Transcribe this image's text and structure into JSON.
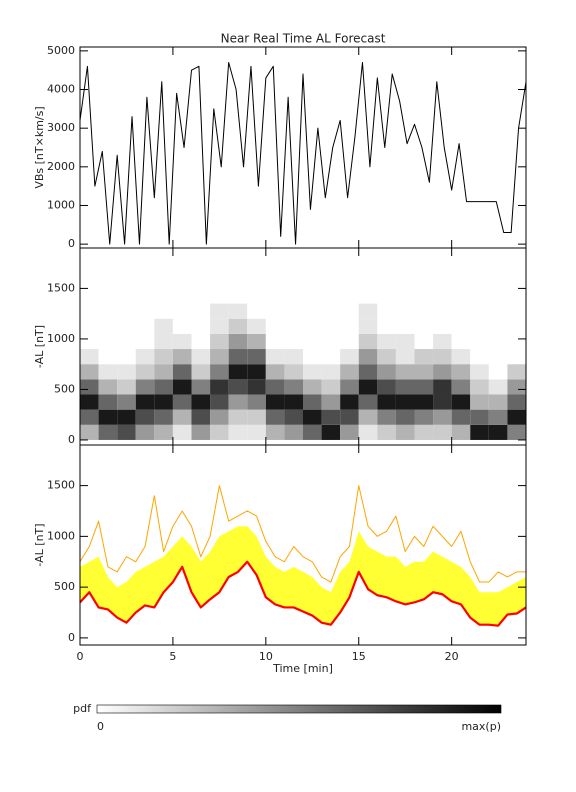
{
  "chart_data": [
    {
      "type": "line",
      "title": "Near Real Time AL Forecast",
      "ylabel": "VBs [nT×km/s]",
      "xlim": [
        0,
        24
      ],
      "xticks": [
        0,
        5,
        10,
        15,
        20
      ],
      "xtick_labels": false,
      "ylim": [
        -100,
        5100
      ],
      "yticks": [
        0,
        1000,
        2000,
        3000,
        4000,
        5000
      ],
      "x": [
        0,
        0.4,
        0.8,
        1.2,
        1.6,
        2,
        2.4,
        2.8,
        3.2,
        3.6,
        4,
        4.4,
        4.8,
        5.2,
        5.6,
        6,
        6.4,
        6.8,
        7.2,
        7.6,
        8,
        8.4,
        8.8,
        9.2,
        9.6,
        10,
        10.4,
        10.8,
        11.2,
        11.6,
        12,
        12.4,
        12.8,
        13.2,
        13.6,
        14,
        14.4,
        14.8,
        15.2,
        15.6,
        16,
        16.4,
        16.8,
        17.2,
        17.6,
        18,
        18.4,
        18.8,
        19.2,
        19.6,
        20,
        20.4,
        20.8,
        21.2,
        21.6,
        22,
        22.4,
        22.8,
        23.2,
        23.6,
        24
      ],
      "series": [
        {
          "color": "#000000",
          "values": [
            3200,
            4600,
            1500,
            2400,
            0,
            2300,
            0,
            3300,
            0,
            3800,
            1200,
            4200,
            0,
            3900,
            2500,
            4500,
            4600,
            0,
            3500,
            2000,
            4700,
            4000,
            2000,
            4600,
            1500,
            4300,
            4600,
            200,
            3800,
            0,
            4400,
            900,
            3000,
            1200,
            2500,
            3200,
            1200,
            2800,
            4700,
            2000,
            4300,
            2500,
            4400,
            3700,
            2600,
            3100,
            2500,
            1600,
            4200,
            2500,
            1400,
            2600,
            1100,
            1100,
            1100,
            1100,
            1100,
            300,
            300,
            3000,
            4200
          ]
        }
      ]
    },
    {
      "type": "heatmap",
      "ylabel": "-AL [nT]",
      "xlim": [
        0,
        24
      ],
      "xticks": [
        0,
        5,
        10,
        15,
        20
      ],
      "xtick_labels": false,
      "ylim": [
        -50,
        1900
      ],
      "yticks": [
        0,
        500,
        1000,
        1500
      ],
      "x_bins": [
        0,
        1,
        2,
        3,
        4,
        5,
        6,
        7,
        8,
        9,
        10,
        11,
        12,
        13,
        14,
        15,
        16,
        17,
        18,
        19,
        20,
        21,
        22,
        23,
        24
      ],
      "y_bins": [
        0,
        150,
        300,
        450,
        600,
        750,
        900,
        1050,
        1200,
        1350,
        1500
      ],
      "z": [
        [
          0.3,
          0.6,
          0.9,
          0.6,
          0.3,
          0.1,
          0,
          0,
          0,
          0
        ],
        [
          0.6,
          0.9,
          0.6,
          0.3,
          0.1,
          0,
          0,
          0,
          0,
          0
        ],
        [
          0.7,
          0.9,
          0.5,
          0.2,
          0.1,
          0,
          0,
          0,
          0,
          0
        ],
        [
          0.4,
          0.7,
          0.9,
          0.5,
          0.2,
          0.1,
          0,
          0,
          0,
          0
        ],
        [
          0.3,
          0.6,
          0.9,
          0.6,
          0.3,
          0.2,
          0.1,
          0.1,
          0,
          0
        ],
        [
          0.1,
          0.3,
          0.6,
          0.9,
          0.6,
          0.3,
          0.1,
          0,
          0,
          0
        ],
        [
          0.4,
          0.7,
          0.9,
          0.5,
          0.2,
          0.1,
          0,
          0,
          0,
          0
        ],
        [
          0.2,
          0.4,
          0.7,
          0.8,
          0.5,
          0.3,
          0.2,
          0.1,
          0.1,
          0
        ],
        [
          0.1,
          0.2,
          0.4,
          0.7,
          0.9,
          0.6,
          0.4,
          0.2,
          0.1,
          0
        ],
        [
          0.1,
          0.2,
          0.5,
          0.8,
          0.9,
          0.6,
          0.3,
          0.1,
          0,
          0
        ],
        [
          0.3,
          0.6,
          0.9,
          0.6,
          0.3,
          0.1,
          0,
          0,
          0,
          0
        ],
        [
          0.4,
          0.7,
          0.9,
          0.5,
          0.2,
          0.1,
          0,
          0,
          0,
          0
        ],
        [
          0.6,
          0.9,
          0.6,
          0.3,
          0.1,
          0,
          0,
          0,
          0,
          0
        ],
        [
          0.9,
          0.7,
          0.4,
          0.2,
          0.1,
          0,
          0,
          0,
          0,
          0
        ],
        [
          0.4,
          0.7,
          0.9,
          0.5,
          0.3,
          0.1,
          0,
          0,
          0,
          0
        ],
        [
          0.1,
          0.3,
          0.6,
          0.9,
          0.6,
          0.4,
          0.2,
          0.1,
          0.1,
          0
        ],
        [
          0.2,
          0.5,
          0.9,
          0.7,
          0.4,
          0.2,
          0.1,
          0,
          0,
          0
        ],
        [
          0.3,
          0.6,
          0.9,
          0.6,
          0.3,
          0.1,
          0.1,
          0,
          0,
          0
        ],
        [
          0.2,
          0.5,
          0.9,
          0.6,
          0.3,
          0.2,
          0,
          0,
          0,
          0
        ],
        [
          0.2,
          0.4,
          0.8,
          0.8,
          0.4,
          0.2,
          0.1,
          0,
          0,
          0
        ],
        [
          0.3,
          0.6,
          0.9,
          0.5,
          0.3,
          0.1,
          0,
          0,
          0,
          0
        ],
        [
          0.9,
          0.6,
          0.3,
          0.2,
          0.1,
          0,
          0,
          0,
          0,
          0
        ],
        [
          0.9,
          0.5,
          0.3,
          0.1,
          0,
          0,
          0,
          0,
          0,
          0
        ],
        [
          0.5,
          0.9,
          0.6,
          0.4,
          0.2,
          0,
          0,
          0,
          0,
          0
        ]
      ],
      "colorbar": {
        "label": "pdf",
        "lim": [
          0,
          1
        ],
        "ticks": [
          0,
          {
            "value": 1,
            "label": "max(p)"
          }
        ]
      }
    },
    {
      "type": "line",
      "ylabel": "-AL [nT]",
      "xlabel": "Time [min]",
      "xlim": [
        0,
        24
      ],
      "xticks": [
        0,
        5,
        10,
        15,
        20
      ],
      "ylim": [
        -70,
        1900
      ],
      "yticks": [
        0,
        500,
        1000,
        1500
      ],
      "x": [
        0,
        0.5,
        1,
        1.5,
        2,
        2.5,
        3,
        3.5,
        4,
        4.5,
        5,
        5.5,
        6,
        6.5,
        7,
        7.5,
        8,
        8.5,
        9,
        9.5,
        10,
        10.5,
        11,
        11.5,
        12,
        12.5,
        13,
        13.5,
        14,
        14.5,
        15,
        15.5,
        16,
        16.5,
        17,
        17.5,
        18,
        18.5,
        19,
        19.5,
        20,
        20.5,
        21,
        21.5,
        22,
        22.5,
        23,
        23.5,
        24
      ],
      "series": [
        {
          "color": "#ffff33",
          "fill": true,
          "values": [
            700,
            750,
            800,
            600,
            500,
            550,
            650,
            700,
            750,
            800,
            900,
            1000,
            900,
            750,
            850,
            1000,
            1050,
            1100,
            1100,
            1000,
            800,
            700,
            650,
            700,
            650,
            600,
            500,
            450,
            650,
            750,
            1050,
            900,
            850,
            800,
            800,
            700,
            750,
            750,
            850,
            800,
            750,
            700,
            600,
            450,
            450,
            450,
            500,
            550,
            600
          ],
          "lower": [
            350,
            450,
            300,
            280,
            200,
            150,
            250,
            320,
            300,
            450,
            550,
            700,
            450,
            300,
            380,
            450,
            600,
            650,
            750,
            620,
            400,
            330,
            300,
            300,
            260,
            220,
            150,
            130,
            250,
            400,
            650,
            480,
            420,
            400,
            360,
            330,
            350,
            380,
            450,
            430,
            360,
            330,
            200,
            130,
            130,
            120,
            230,
            240,
            300
          ]
        },
        {
          "color": "#ffa500",
          "values": [
            750,
            900,
            1150,
            700,
            650,
            800,
            750,
            900,
            1400,
            850,
            1100,
            1250,
            1100,
            800,
            1000,
            1500,
            1150,
            1200,
            1250,
            1200,
            950,
            800,
            750,
            900,
            800,
            750,
            600,
            550,
            800,
            900,
            1500,
            1100,
            1000,
            1050,
            1200,
            850,
            1000,
            900,
            1100,
            1000,
            900,
            1050,
            750,
            550,
            550,
            650,
            600,
            650,
            650
          ]
        },
        {
          "color": "#ff0000",
          "bold": true,
          "values": [
            350,
            450,
            300,
            280,
            200,
            150,
            250,
            320,
            300,
            450,
            550,
            700,
            450,
            300,
            380,
            450,
            600,
            650,
            750,
            620,
            400,
            330,
            300,
            300,
            260,
            220,
            150,
            130,
            250,
            400,
            650,
            480,
            420,
            400,
            360,
            330,
            350,
            380,
            450,
            430,
            360,
            330,
            200,
            130,
            130,
            120,
            230,
            240,
            300
          ]
        }
      ]
    }
  ]
}
